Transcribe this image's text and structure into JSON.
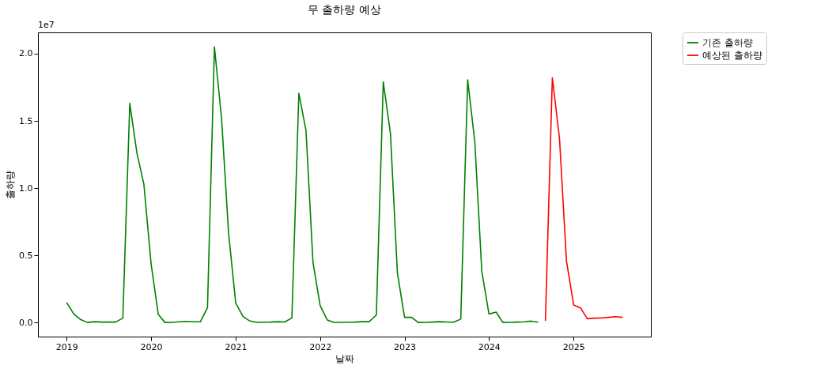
{
  "chart_data": {
    "type": "line",
    "title": "무 출하량 예상",
    "xlabel": "날짜",
    "ylabel": "출하량",
    "annotations": [
      "1e7"
    ],
    "xlim": [
      "2018-08-30",
      "2025-12-01"
    ],
    "xticks": [
      {
        "value": "2019",
        "label": "2019"
      },
      {
        "value": "2020",
        "label": "2020"
      },
      {
        "value": "2021",
        "label": "2021"
      },
      {
        "value": "2022",
        "label": "2022"
      },
      {
        "value": "2023",
        "label": "2023"
      },
      {
        "value": "2024",
        "label": "2024"
      },
      {
        "value": "2025",
        "label": "2025"
      }
    ],
    "ylim": [
      -0.103,
      2.158
    ],
    "yticks": [
      {
        "value": 0,
        "label": "0.0"
      },
      0.5,
      {
        "value": 1,
        "label": "1.0"
      },
      1.5,
      {
        "value": 2,
        "label": "2.0"
      }
    ],
    "grid": false,
    "legend": "top right",
    "line_style": "solid",
    "marker": "none",
    "series": [
      {
        "name": "기존 출하량",
        "color": "#008000",
        "x": [
          "2019-01",
          "2019-02",
          "2019-03",
          "2019-04",
          "2019-05",
          "2019-06",
          "2019-07",
          "2019-08",
          "2019-09",
          "2019-10",
          "2019-11",
          "2019-12",
          "2020-01",
          "2020-02",
          "2020-03",
          "2020-04",
          "2020-05",
          "2020-06",
          "2020-07",
          "2020-08",
          "2020-09",
          "2020-10",
          "2020-11",
          "2020-12",
          "2021-01",
          "2021-02",
          "2021-03",
          "2021-04",
          "2021-05",
          "2021-06",
          "2021-07",
          "2021-08",
          "2021-09",
          "2021-10",
          "2021-11",
          "2021-12",
          "2022-01",
          "2022-02",
          "2022-03",
          "2022-04",
          "2022-05",
          "2022-06",
          "2022-07",
          "2022-08",
          "2022-09",
          "2022-10",
          "2022-11",
          "2022-12",
          "2023-01",
          "2023-02",
          "2023-03",
          "2023-04",
          "2023-05",
          "2023-06",
          "2023-07",
          "2023-08",
          "2023-09",
          "2023-10",
          "2023-11",
          "2023-12",
          "2024-01",
          "2024-02",
          "2024-03",
          "2024-04",
          "2024-05",
          "2024-06",
          "2024-07",
          "2024-08"
        ],
        "values": [
          0.15,
          0.065,
          0.025,
          0.002,
          0.008,
          0.005,
          0.005,
          0.005,
          0.034,
          1.63,
          1.26,
          1.03,
          0.44,
          0.063,
          0.002,
          0.003,
          0.007,
          0.01,
          0.007,
          0.007,
          0.112,
          2.05,
          1.515,
          0.67,
          0.147,
          0.047,
          0.015,
          0.003,
          0.004,
          0.005,
          0.008,
          0.006,
          0.036,
          1.705,
          1.427,
          0.45,
          0.128,
          0.02,
          0.003,
          0.003,
          0.004,
          0.005,
          0.008,
          0.008,
          0.057,
          1.79,
          1.407,
          0.37,
          0.04,
          0.04,
          0.002,
          0.003,
          0.005,
          0.008,
          0.006,
          0.004,
          0.027,
          1.805,
          1.34,
          0.382,
          0.065,
          0.079,
          0.002,
          0.003,
          0.005,
          0.007,
          0.012,
          0.004
        ]
      },
      {
        "name": "예상된 출하량",
        "color": "#ff0000",
        "x": [
          "2024-09",
          "2024-10",
          "2024-11",
          "2024-12",
          "2025-01",
          "2025-02",
          "2025-03",
          "2025-04",
          "2025-05",
          "2025-06",
          "2025-07",
          "2025-08"
        ],
        "values": [
          0.015,
          1.82,
          1.368,
          0.46,
          0.132,
          0.108,
          0.03,
          0.034,
          0.036,
          0.04,
          0.045,
          0.04
        ]
      }
    ]
  }
}
